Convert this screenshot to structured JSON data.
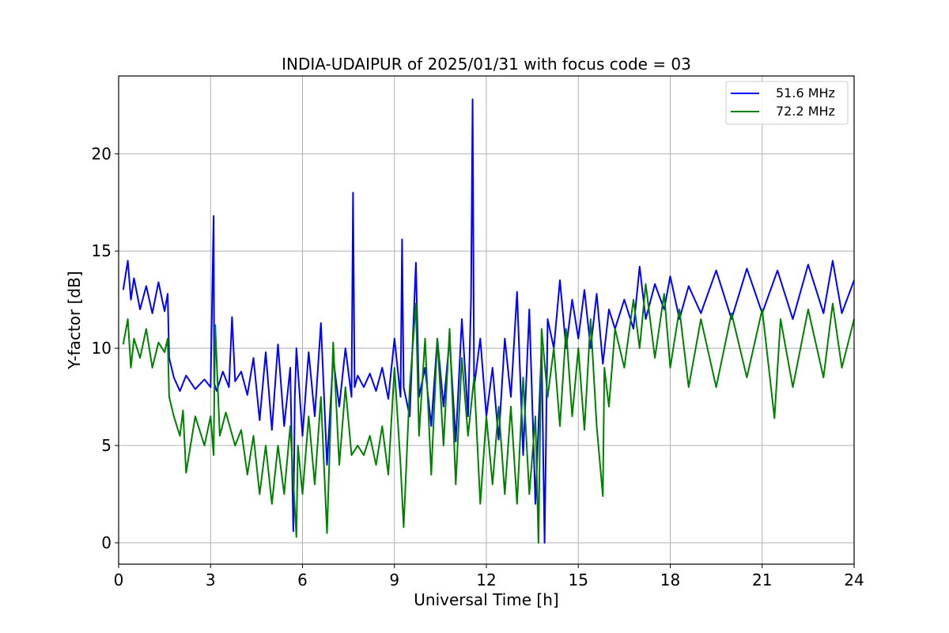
{
  "chart_data": {
    "type": "line",
    "title": "INDIA-UDAIPUR of 2025/01/31 with focus code = 03",
    "xlabel": "Universal Time [h]",
    "ylabel": "Y-factor [dB]",
    "xlim": [
      0,
      24
    ],
    "ylim": [
      -1.1,
      24.0
    ],
    "xticks": [
      "0",
      "3",
      "6",
      "9",
      "12",
      "15",
      "18",
      "21",
      "24"
    ],
    "yticks": [
      "0",
      "5",
      "10",
      "15",
      "20"
    ],
    "grid": true,
    "legend_position": "top-right",
    "series": [
      {
        "name": "51.6 MHz",
        "color": "#0000ff",
        "x": [
          0.15,
          0.3,
          0.4,
          0.5,
          0.7,
          0.9,
          1.1,
          1.3,
          1.5,
          1.6,
          1.65,
          1.8,
          2.0,
          2.2,
          2.5,
          2.8,
          3.0,
          3.1,
          3.12,
          3.2,
          3.4,
          3.6,
          3.7,
          3.8,
          4.0,
          4.2,
          4.4,
          4.6,
          4.8,
          5.0,
          5.2,
          5.4,
          5.6,
          5.7,
          5.75,
          5.8,
          6.0,
          6.2,
          6.4,
          6.6,
          6.8,
          7.0,
          7.2,
          7.4,
          7.6,
          7.65,
          7.7,
          7.8,
          8.0,
          8.2,
          8.4,
          8.6,
          8.8,
          9.0,
          9.2,
          9.25,
          9.3,
          9.5,
          9.7,
          9.8,
          10.0,
          10.2,
          10.4,
          10.6,
          10.8,
          11.0,
          11.2,
          11.4,
          11.5,
          11.55,
          11.6,
          11.8,
          12.0,
          12.2,
          12.4,
          12.6,
          12.8,
          13.0,
          13.2,
          13.4,
          13.6,
          13.8,
          13.9,
          14.0,
          14.2,
          14.4,
          14.6,
          14.8,
          15.0,
          15.2,
          15.4,
          15.6,
          15.8,
          16.0,
          16.2,
          16.5,
          16.8,
          17.0,
          17.2,
          17.5,
          17.8,
          18.0,
          18.3,
          18.6,
          19.0,
          19.5,
          20.0,
          20.5,
          21.0,
          21.5,
          22.0,
          22.5,
          23.0,
          23.3,
          23.6,
          24.0
        ],
        "y": [
          13.0,
          14.5,
          12.5,
          13.6,
          12.0,
          13.2,
          11.8,
          13.4,
          11.9,
          12.8,
          9.5,
          8.5,
          7.8,
          8.6,
          7.9,
          8.4,
          8.0,
          16.8,
          8.2,
          7.8,
          8.8,
          8.0,
          11.6,
          8.3,
          8.8,
          7.6,
          9.5,
          6.3,
          9.8,
          5.8,
          10.2,
          6.0,
          9.0,
          0.6,
          7.5,
          10.0,
          5.5,
          9.8,
          6.5,
          11.3,
          4.0,
          9.5,
          7.0,
          10.0,
          7.5,
          18.0,
          8.0,
          8.6,
          8.0,
          8.7,
          7.8,
          9.0,
          7.4,
          10.5,
          7.5,
          15.6,
          8.0,
          6.5,
          14.4,
          7.5,
          9.0,
          6.0,
          10.5,
          7.0,
          10.5,
          5.2,
          11.5,
          6.5,
          12.5,
          22.8,
          8.0,
          10.5,
          6.5,
          9.0,
          5.3,
          10.5,
          7.5,
          12.9,
          4.5,
          12.0,
          2.0,
          10.0,
          0.0,
          11.5,
          10.0,
          13.5,
          10.0,
          12.5,
          10.5,
          13.0,
          10.0,
          12.8,
          9.2,
          12.0,
          11.0,
          12.5,
          11.0,
          14.2,
          11.5,
          13.3,
          12.0,
          13.7,
          11.5,
          13.2,
          11.8,
          14.0,
          11.5,
          14.1,
          11.8,
          14.0,
          11.5,
          14.3,
          11.8,
          14.5,
          11.8,
          13.5
        ]
      },
      {
        "name": "72.2 MHz",
        "color": "#008000",
        "x": [
          0.15,
          0.3,
          0.4,
          0.5,
          0.7,
          0.9,
          1.1,
          1.3,
          1.5,
          1.6,
          1.65,
          1.8,
          2.0,
          2.1,
          2.2,
          2.5,
          2.8,
          3.0,
          3.1,
          3.15,
          3.3,
          3.5,
          3.8,
          4.0,
          4.2,
          4.4,
          4.6,
          4.8,
          5.0,
          5.2,
          5.4,
          5.6,
          5.8,
          5.85,
          6.0,
          6.2,
          6.4,
          6.6,
          6.8,
          7.0,
          7.2,
          7.4,
          7.6,
          7.8,
          8.0,
          8.2,
          8.4,
          8.6,
          8.8,
          9.0,
          9.2,
          9.3,
          9.5,
          9.7,
          9.8,
          10.0,
          10.2,
          10.4,
          10.6,
          10.8,
          11.0,
          11.2,
          11.4,
          11.6,
          11.8,
          12.0,
          12.2,
          12.4,
          12.6,
          12.8,
          13.0,
          13.2,
          13.4,
          13.6,
          13.7,
          13.8,
          14.0,
          14.2,
          14.4,
          14.6,
          14.8,
          15.0,
          15.2,
          15.4,
          15.6,
          15.8,
          15.85,
          16.0,
          16.2,
          16.5,
          16.8,
          17.0,
          17.2,
          17.5,
          17.8,
          18.0,
          18.3,
          18.6,
          19.0,
          19.5,
          20.0,
          20.5,
          21.0,
          21.4,
          21.6,
          22.0,
          22.5,
          23.0,
          23.3,
          23.6,
          24.0
        ],
        "y": [
          10.2,
          11.5,
          9.0,
          10.5,
          9.5,
          11.0,
          9.0,
          10.3,
          9.8,
          10.5,
          7.5,
          6.5,
          5.5,
          6.8,
          3.6,
          6.5,
          5.0,
          6.5,
          4.5,
          11.2,
          5.5,
          6.7,
          5.0,
          5.8,
          3.5,
          5.5,
          2.5,
          5.0,
          2.0,
          5.0,
          2.5,
          6.0,
          0.3,
          5.0,
          2.5,
          6.5,
          3.0,
          7.5,
          0.5,
          10.3,
          4.0,
          8.0,
          4.5,
          5.0,
          4.5,
          5.5,
          4.0,
          6.0,
          3.5,
          9.0,
          4.0,
          0.8,
          8.0,
          12.3,
          5.5,
          10.5,
          3.5,
          10.5,
          5.0,
          11.0,
          3.0,
          9.5,
          5.5,
          8.5,
          2.0,
          6.5,
          3.0,
          7.0,
          2.5,
          7.0,
          2.0,
          8.5,
          2.5,
          6.5,
          0.0,
          11.0,
          7.5,
          10.0,
          6.0,
          11.0,
          6.5,
          10.0,
          5.8,
          11.5,
          6.0,
          2.4,
          9.0,
          7.0,
          11.0,
          9.0,
          12.5,
          10.0,
          13.3,
          9.5,
          12.8,
          9.0,
          12.0,
          8.0,
          11.5,
          8.0,
          11.8,
          8.5,
          12.0,
          6.4,
          11.5,
          8.0,
          12.0,
          8.5,
          12.3,
          9.0,
          11.5
        ]
      }
    ]
  }
}
